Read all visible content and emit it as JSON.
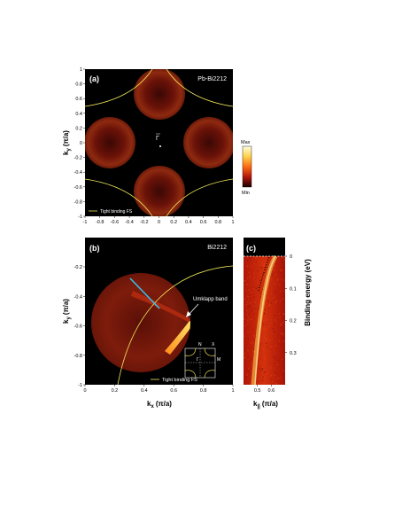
{
  "panel_a": {
    "label": "(a)",
    "sample": "Pb-Bi2212",
    "gamma_label": "Γ",
    "legend": "Tight binding FS",
    "xlabel": "",
    "ylabel_main": "k",
    "ylabel_sub": "y",
    "ylabel_unit": "(π/a)",
    "x_ticks": [
      "-1",
      "-0.8",
      "-0.6",
      "-0.4",
      "-0.2",
      "0",
      "0.2",
      "0.4",
      "0.6",
      "0.8",
      "1"
    ],
    "y_ticks": [
      "1",
      "0.8",
      "0.6",
      "0.4",
      "0.2",
      "0",
      "-0.2",
      "-0.4",
      "-0.6",
      "-0.8",
      "-1"
    ]
  },
  "colorbar": {
    "max_label": "Max",
    "min_label": "Min"
  },
  "panel_b": {
    "label": "(b)",
    "sample": "Bi2212",
    "annotation": "Umklapp band",
    "legend": "Tight binding FS",
    "xlabel_main": "k",
    "xlabel_sub": "x",
    "xlabel_unit": "(π/a)",
    "ylabel_main": "k",
    "ylabel_sub": "y",
    "ylabel_unit": "(π/a)",
    "x_ticks": [
      "0",
      "0.2",
      "0.4",
      "0.6",
      "0.8",
      "1"
    ],
    "y_ticks": [
      "-0.2",
      "-0.4",
      "-0.6",
      "-0.8",
      "-1"
    ],
    "inset_labels": {
      "n_top": "N",
      "x_top": "X",
      "gamma": "Γ",
      "m_right": "M"
    }
  },
  "panel_c": {
    "label": "(c)",
    "xlabel_main": "k",
    "xlabel_sub": "||",
    "xlabel_unit": "(π/a)",
    "x_ticks": [
      "0.5",
      "0.6"
    ],
    "ylabel": "Binding energy (eV)",
    "y_ticks": [
      "0",
      "0.1",
      "0.2",
      "0.3"
    ]
  },
  "chart_data": [
    {
      "type": "heatmap",
      "title": "Pb-Bi2212",
      "xlabel": "",
      "ylabel": "ky (π/a)",
      "xlim": [
        -1,
        1
      ],
      "ylim": [
        -1,
        1
      ],
      "series": [
        {
          "name": "Tight binding FS",
          "values": []
        }
      ],
      "patches": [
        {
          "cx": 0.0,
          "cy": 0.68,
          "r": 0.34
        },
        {
          "cx": -0.68,
          "cy": 0.0,
          "r": 0.34
        },
        {
          "cx": 0.68,
          "cy": 0.0,
          "r": 0.34
        },
        {
          "cx": 0.0,
          "cy": -0.68,
          "r": 0.34
        }
      ]
    },
    {
      "type": "heatmap",
      "title": "Bi2212",
      "xlabel": "kx (π/a)",
      "ylabel": "ky (π/a)",
      "xlim": [
        0,
        1
      ],
      "ylim": [
        -1,
        0
      ],
      "series": [
        {
          "name": "Tight binding FS",
          "values": []
        }
      ],
      "patch": {
        "cx": 0.38,
        "cy": -0.58,
        "r": 0.34
      },
      "cut_line": {
        "x1": 0.3,
        "y1": -0.38,
        "x2": 0.5,
        "y2": -0.58
      }
    },
    {
      "type": "heatmap",
      "title": "",
      "xlabel": "k|| (π/a)",
      "ylabel": "Binding energy (eV)",
      "xlim": [
        0.4,
        0.7
      ],
      "ylim": [
        0.4,
        0
      ],
      "dispersion": {
        "k": [
          0.5,
          0.52,
          0.55,
          0.58,
          0.61,
          0.64
        ],
        "E": [
          0.4,
          0.3,
          0.2,
          0.12,
          0.06,
          0.0
        ]
      }
    }
  ]
}
